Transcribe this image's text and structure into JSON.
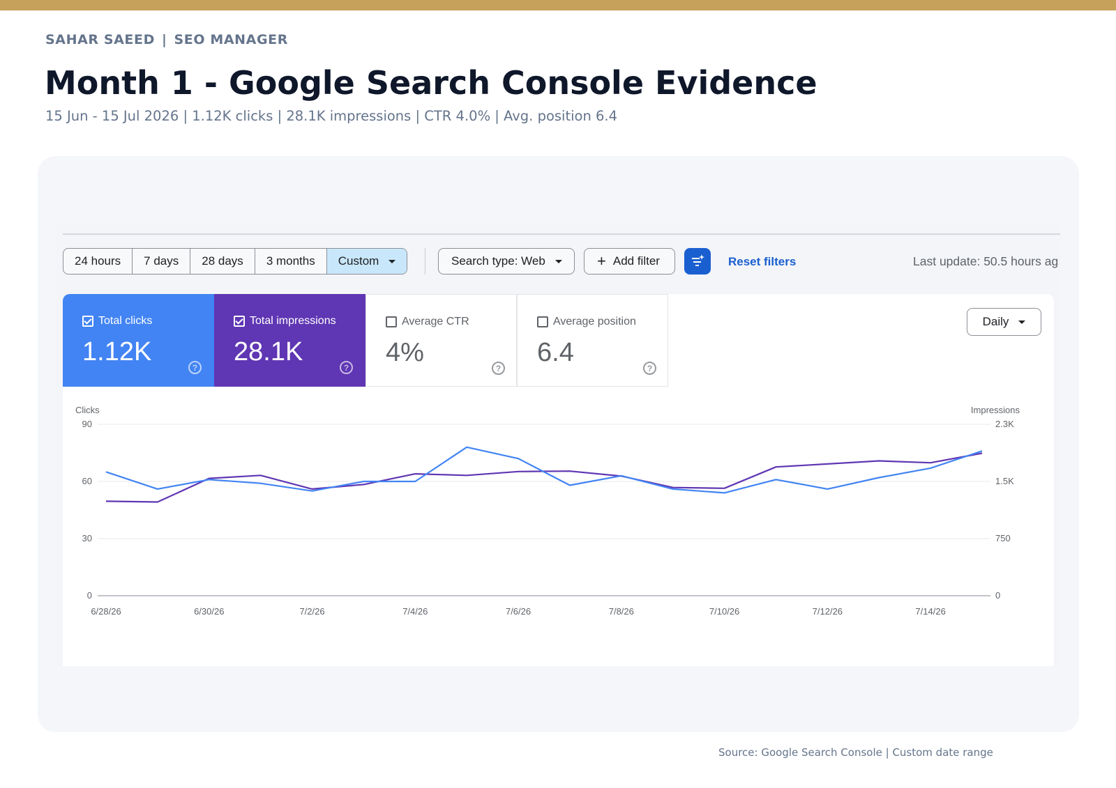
{
  "header": {
    "eyebrow_name": "SAHAR SAEED",
    "eyebrow_separator": "|",
    "eyebrow_role": "SEO MANAGER",
    "title": "Month 1 - Google Search Console Evidence",
    "subtitle": "15 Jun - 15 Jul 2026 | 1.12K clicks | 28.1K impressions | CTR 4.0% | Avg. position 6.4"
  },
  "toolbar": {
    "date_ranges": [
      "24 hours",
      "7 days",
      "28 days",
      "3 months",
      "Custom"
    ],
    "active_range": "Custom",
    "search_type_label": "Search type: Web",
    "add_filter_label": "Add filter",
    "reset_filters_label": "Reset filters",
    "last_update": "Last update: 50.5 hours ag"
  },
  "metrics": {
    "clicks": {
      "label": "Total clicks",
      "value": "1.12K",
      "checked": true
    },
    "impressions": {
      "label": "Total impressions",
      "value": "28.1K",
      "checked": true
    },
    "ctr": {
      "label": "Average CTR",
      "value": "4%",
      "checked": false
    },
    "position": {
      "label": "Average position",
      "value": "6.4",
      "checked": false
    }
  },
  "granularity": "Daily",
  "colors": {
    "accent_gold": "#c6a15b",
    "clicks_blue": "#4284f3",
    "impressions_purple": "#5f36b3",
    "google_blue": "#1a5fd0"
  },
  "chart_data": {
    "type": "line",
    "ylabel_left": "Clicks",
    "ylabel_right": "Impressions",
    "yticks_left": [
      "90",
      "60",
      "30",
      "0"
    ],
    "yticks_right": [
      "2.3K",
      "1.5K",
      "750",
      "0"
    ],
    "ylim_left": [
      0,
      90
    ],
    "ylim_right": [
      0,
      2250
    ],
    "x": [
      "6/28/26",
      "6/29/26",
      "6/30/26",
      "7/1/26",
      "7/2/26",
      "7/3/26",
      "7/4/26",
      "7/5/26",
      "7/6/26",
      "7/7/26",
      "7/8/26",
      "7/9/26",
      "7/10/26",
      "7/11/26",
      "7/12/26",
      "7/13/26",
      "7/14/26",
      "7/15/26"
    ],
    "xtick_labels": [
      "6/28/26",
      "6/30/26",
      "7/2/26",
      "7/4/26",
      "7/6/26",
      "7/8/26",
      "7/10/26",
      "7/12/26",
      "7/14/26"
    ],
    "grid": true,
    "series": [
      {
        "name": "Total clicks",
        "axis": "left",
        "color": "#4284f3",
        "values": [
          65,
          56,
          61,
          59,
          55,
          60,
          60,
          78,
          72,
          58,
          63,
          56,
          54,
          61,
          56,
          62,
          67,
          76
        ]
      },
      {
        "name": "Total impressions",
        "axis": "right",
        "color": "#5f36b3",
        "values": [
          1240,
          1230,
          1540,
          1580,
          1400,
          1460,
          1600,
          1580,
          1630,
          1635,
          1570,
          1420,
          1410,
          1690,
          1730,
          1770,
          1745,
          1870
        ]
      }
    ]
  },
  "footer": {
    "source": "Source: Google Search Console | Custom date range"
  }
}
